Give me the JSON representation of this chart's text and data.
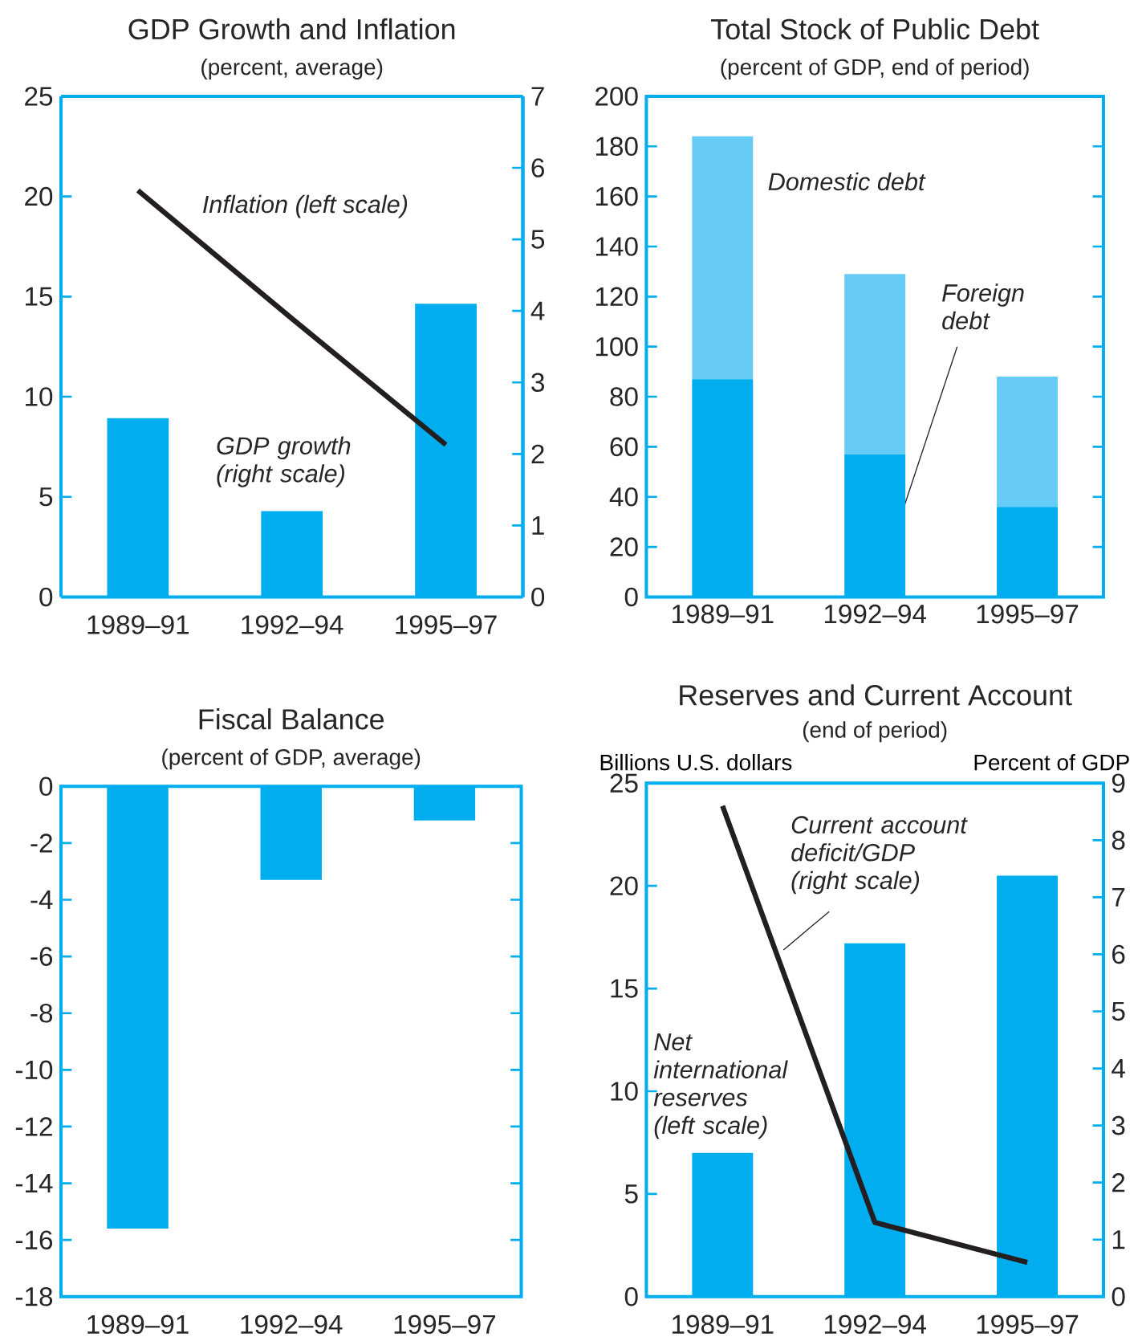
{
  "chart_data": [
    {
      "type": "bar",
      "title": "GDP Growth and Inflation",
      "subtitle": "(percent, average)",
      "categories": [
        "1989–91",
        "1992–94",
        "1995–97"
      ],
      "series": [
        {
          "name": "Inflation (left scale)",
          "type": "line",
          "color": "#231f20",
          "values": [
            20.3,
            13.9,
            7.6
          ]
        },
        {
          "name": "GDP growth (right scale)",
          "type": "bar",
          "axis": "y2",
          "color": "#00aeef",
          "values": [
            2.5,
            1.2,
            4.1
          ]
        }
      ],
      "ylim": [
        0,
        25
      ],
      "yticks": [
        0,
        5,
        10,
        15,
        20,
        25
      ],
      "y2lim": [
        0,
        7
      ],
      "y2ticks": [
        0,
        1,
        2,
        3,
        4,
        5,
        6,
        7
      ]
    },
    {
      "type": "bar",
      "title": "Total Stock of Public Debt",
      "subtitle": "(percent of GDP, end of period)",
      "categories": [
        "1989–91",
        "1992–94",
        "1995–97"
      ],
      "stacked": true,
      "series": [
        {
          "name": "Foreign debt",
          "color": "#00aeef",
          "values": [
            87,
            57,
            36
          ]
        },
        {
          "name": "Domestic debt",
          "color": "#66ccf5",
          "values": [
            97,
            72,
            52
          ]
        }
      ],
      "ylim": [
        0,
        200
      ],
      "yticks": [
        0,
        20,
        40,
        60,
        80,
        100,
        120,
        140,
        160,
        180,
        200
      ]
    },
    {
      "type": "bar",
      "title": "Fiscal Balance",
      "subtitle": "(percent of GDP, average)",
      "categories": [
        "1989–91",
        "1992–94",
        "1995–97"
      ],
      "series": [
        {
          "color": "#00aeef",
          "values": [
            -15.6,
            -3.3,
            -1.2
          ]
        }
      ],
      "ylim": [
        -18,
        0
      ],
      "yticks": [
        0,
        -2,
        -4,
        -6,
        -8,
        -10,
        -12,
        -14,
        -16,
        -18
      ]
    },
    {
      "type": "bar",
      "title": "Reserves and Current Account",
      "subtitle": "(end of period)",
      "ylabel": "Billions U.S. dollars",
      "y2label": "Percent of GDP",
      "categories": [
        "1989–91",
        "1992–94",
        "1995–97"
      ],
      "series": [
        {
          "name": "Net international reserves (left scale)",
          "type": "bar",
          "color": "#00aeef",
          "values": [
            7.0,
            17.2,
            20.5
          ]
        },
        {
          "name": "Current account deficit/GDP (right scale)",
          "type": "line",
          "axis": "y2",
          "color": "#231f20",
          "values": [
            8.6,
            1.3,
            0.6
          ]
        }
      ],
      "ylim": [
        0,
        25
      ],
      "yticks": [
        0,
        5,
        10,
        15,
        20,
        25
      ],
      "y2lim": [
        0,
        9
      ],
      "y2ticks": [
        0,
        1,
        2,
        3,
        4,
        5,
        6,
        7,
        8,
        9
      ]
    }
  ]
}
